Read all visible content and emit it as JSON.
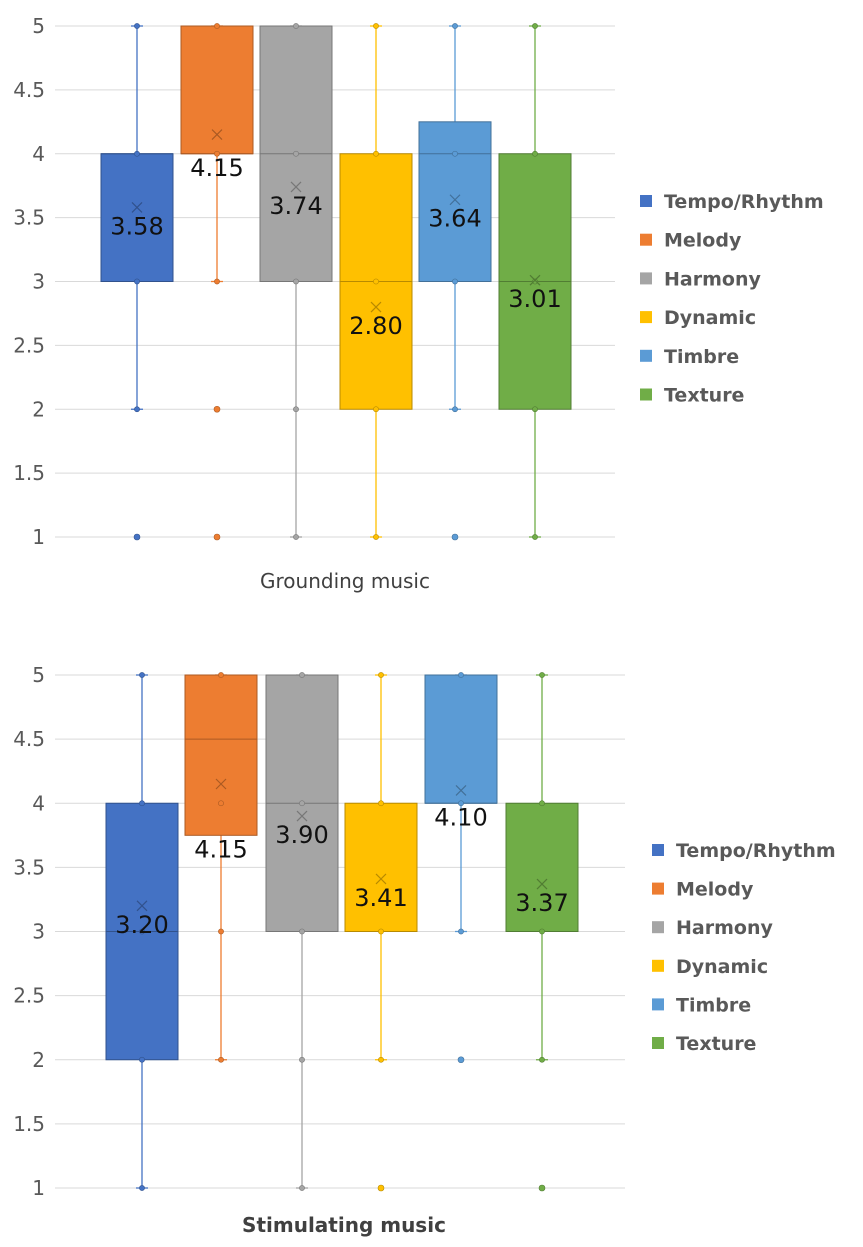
{
  "chart_data": [
    {
      "type": "boxplot",
      "xlabel": "Grounding music",
      "ylabel": "",
      "ylim": [
        1,
        5
      ],
      "yticks": [
        "1",
        "1.5",
        "2",
        "2.5",
        "3",
        "3.5",
        "4",
        "4.5",
        "5"
      ],
      "legend_position": "right",
      "series": [
        {
          "name": "Tempo/Rhythm",
          "color": "#4472C4",
          "min": 2,
          "q1": 3,
          "median": 4,
          "q3": 4,
          "max": 5,
          "mean": 3.58,
          "mean_label": "3.58",
          "outliers": [
            1
          ]
        },
        {
          "name": "Melody",
          "color": "#ED7D31",
          "min": 3,
          "q1": 4,
          "median": 4,
          "q3": 5,
          "max": 5,
          "mean": 4.15,
          "mean_label": "4.15",
          "outliers": [
            1,
            2
          ]
        },
        {
          "name": "Harmony",
          "color": "#A5A5A5",
          "min": 1,
          "q1": 3,
          "median": 4,
          "q3": 5,
          "max": 5,
          "mean": 3.74,
          "mean_label": "3.74",
          "outliers": []
        },
        {
          "name": "Dynamic",
          "color": "#FFC000",
          "min": 1,
          "q1": 2,
          "median": 3,
          "q3": 4,
          "max": 5,
          "mean": 2.8,
          "mean_label": "2.80",
          "outliers": []
        },
        {
          "name": "Timbre",
          "color": "#5B9BD5",
          "min": 2,
          "q1": 3,
          "median": 4,
          "q3": 4.25,
          "max": 5,
          "mean": 3.64,
          "mean_label": "3.64",
          "outliers": [
            1
          ]
        },
        {
          "name": "Texture",
          "color": "#70AD47",
          "min": 1,
          "q1": 2,
          "median": 3,
          "q3": 4,
          "max": 5,
          "mean": 3.01,
          "mean_label": "3.01",
          "outliers": []
        }
      ]
    },
    {
      "type": "boxplot",
      "xlabel": "Stimulating music",
      "ylabel": "",
      "ylim": [
        1,
        5
      ],
      "yticks": [
        "1",
        "1.5",
        "2",
        "2.5",
        "3",
        "3.5",
        "4",
        "4.5",
        "5"
      ],
      "legend_position": "right",
      "series": [
        {
          "name": "Tempo/Rhythm",
          "color": "#4472C4",
          "min": 1,
          "q1": 2,
          "median": 3,
          "q3": 4,
          "max": 5,
          "mean": 3.2,
          "mean_label": "3.20",
          "outliers": []
        },
        {
          "name": "Melody",
          "color": "#ED7D31",
          "min": 2,
          "q1": 3.75,
          "median": 4.5,
          "q3": 5,
          "max": 5,
          "mean": 4.15,
          "mean_label": "4.15",
          "outliers": []
        },
        {
          "name": "Harmony",
          "color": "#A5A5A5",
          "min": 1,
          "q1": 3,
          "median": 4,
          "q3": 5,
          "max": 5,
          "mean": 3.9,
          "mean_label": "3.90",
          "outliers": []
        },
        {
          "name": "Dynamic",
          "color": "#FFC000",
          "min": 2,
          "q1": 3,
          "median": 3,
          "q3": 4,
          "max": 5,
          "mean": 3.41,
          "mean_label": "3.41",
          "outliers": [
            1
          ]
        },
        {
          "name": "Timbre",
          "color": "#5B9BD5",
          "min": 3,
          "q1": 4,
          "median": 4,
          "q3": 5,
          "max": 5,
          "mean": 4.1,
          "mean_label": "4.10",
          "outliers": [
            2
          ]
        },
        {
          "name": "Texture",
          "color": "#70AD47",
          "min": 2,
          "q1": 3,
          "median": 3,
          "q3": 4,
          "max": 5,
          "mean": 3.37,
          "mean_label": "3.37",
          "outliers": [
            1
          ]
        }
      ]
    }
  ]
}
